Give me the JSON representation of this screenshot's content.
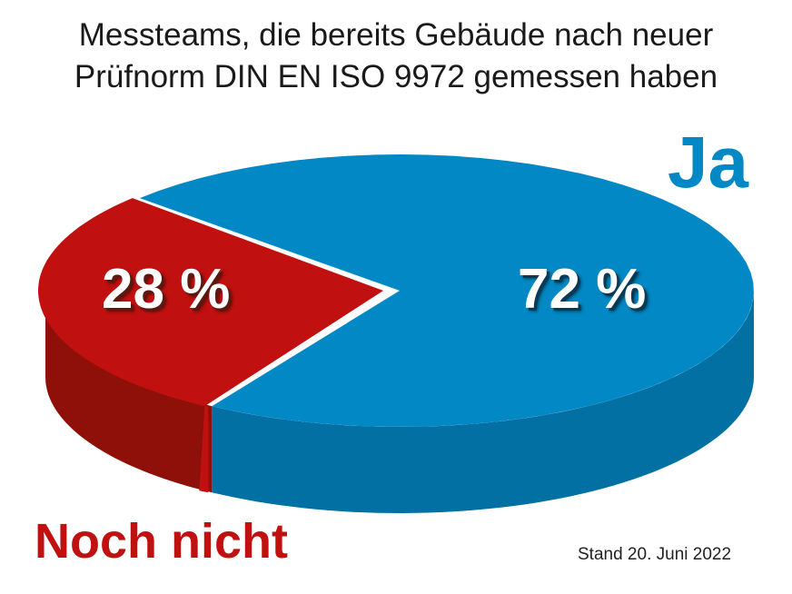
{
  "chart_data": {
    "type": "pie",
    "title_lines": [
      "Messteams, die bereits Gebäude nach neuer",
      "Prüfnorm DIN EN ISO 9972 gemessen haben"
    ],
    "slices": [
      {
        "label": "Ja",
        "value": 72,
        "value_label": "72 %",
        "color": "#0288c4",
        "side_color": "#0270a3"
      },
      {
        "label": "Noch nicht",
        "value": 28,
        "value_label": "28 %",
        "color": "#c01010",
        "side_color": "#8e1008"
      }
    ],
    "footnote": "Stand 20. Juni 2022"
  }
}
